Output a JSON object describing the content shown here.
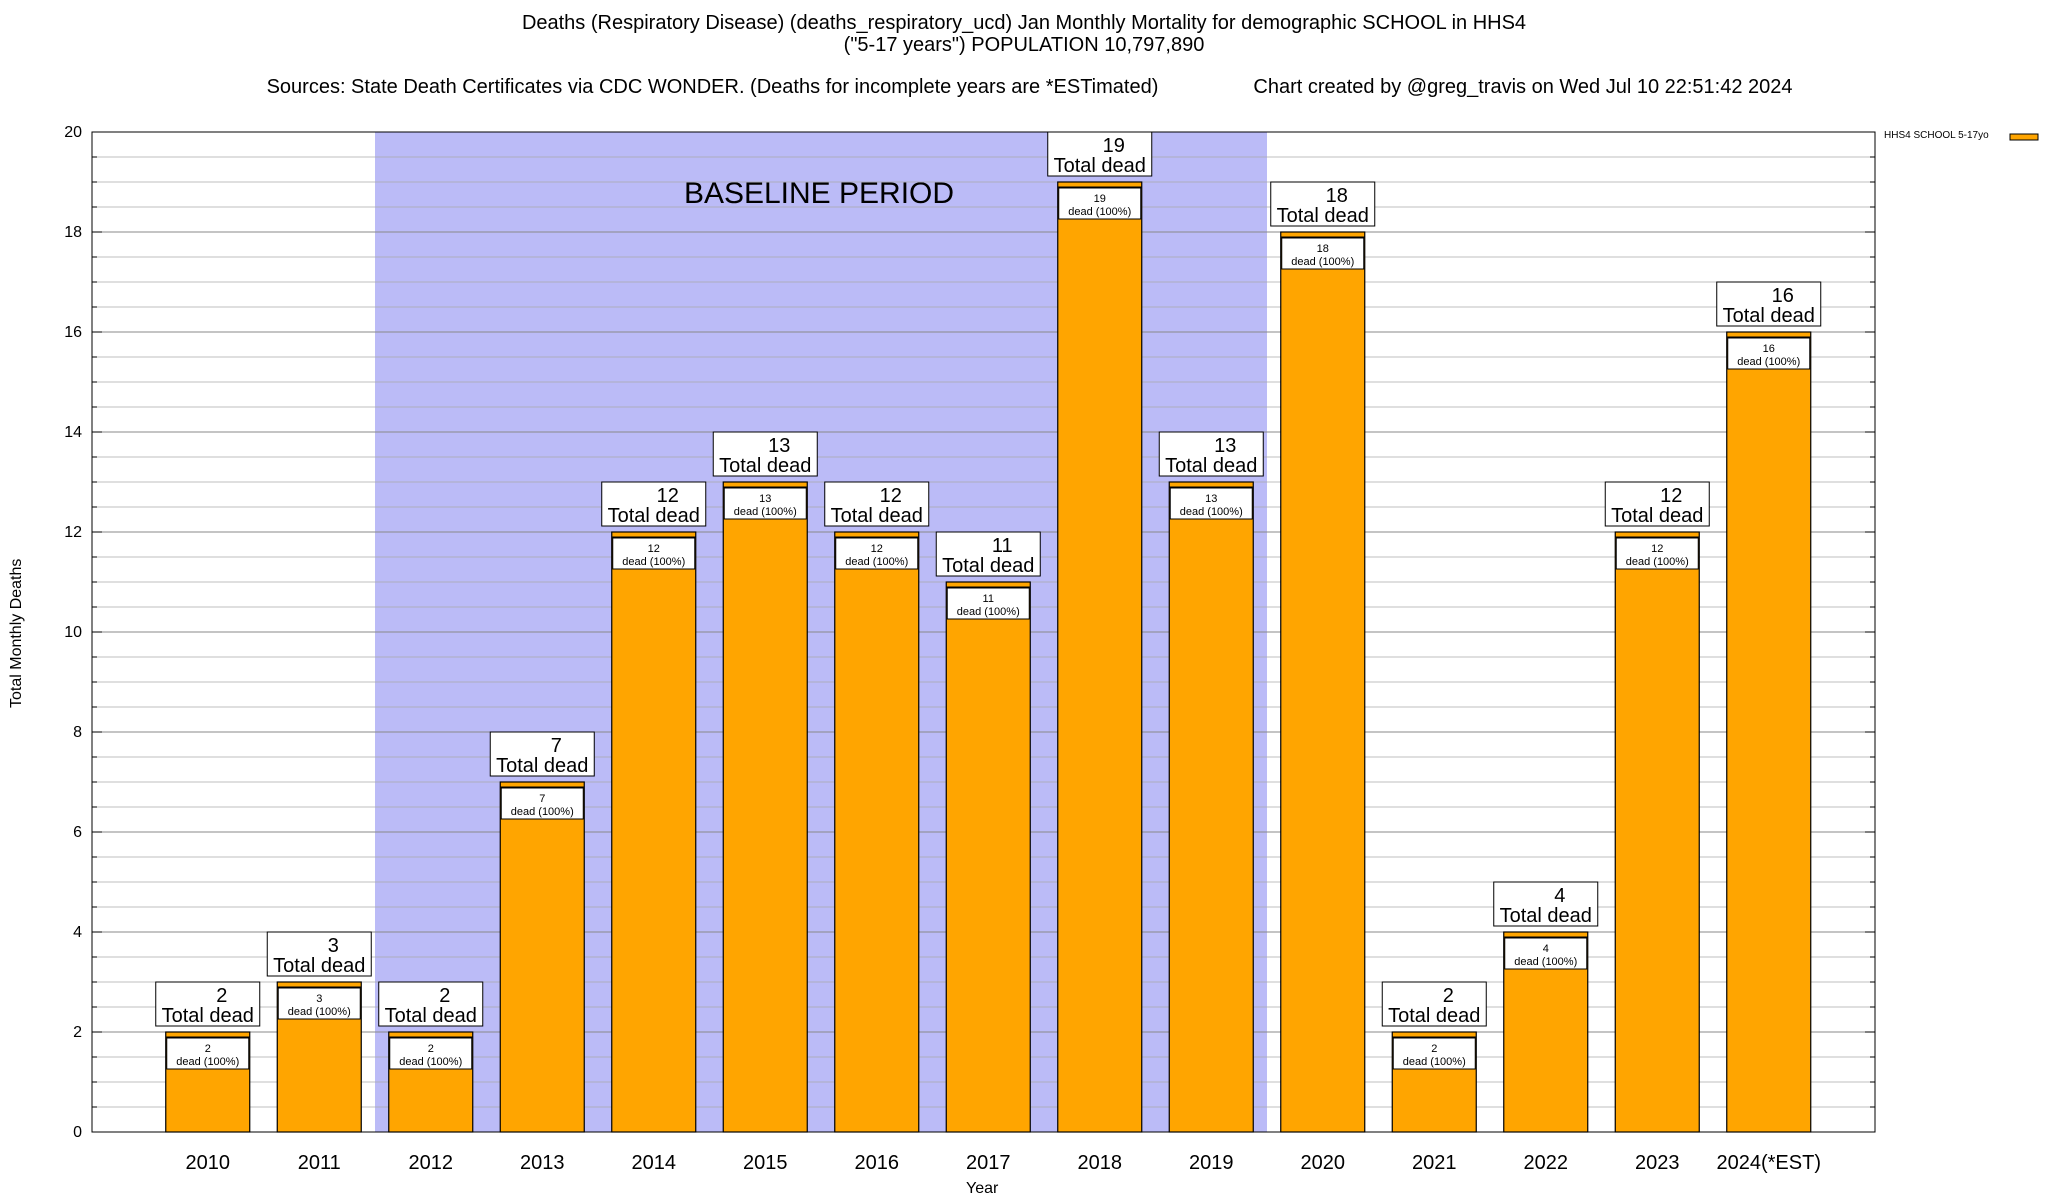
{
  "header": {
    "title_line1": "Deaths (Respiratory Disease) (deaths_respiratory_ucd) Jan Monthly Mortality for demographic SCHOOL in HHS4",
    "title_line2": "(\"5-17 years\") POPULATION 10,797,890",
    "sources": "Sources: State Death Certificates via CDC WONDER. (Deaths for incomplete years are *ESTimated)",
    "credit": "Chart created by @greg_travis on Wed Jul 10 22:51:42 2024"
  },
  "colors": {
    "bar_fill": "#FFA500",
    "baseline_shade": "#BBBBF7",
    "grid": "#AAAAAA"
  },
  "chart_data": {
    "type": "bar",
    "xlabel": "Year",
    "ylabel": "Total Monthly Deaths",
    "ylim": [
      0,
      20
    ],
    "yticks": [
      0,
      2,
      4,
      6,
      8,
      10,
      12,
      14,
      16,
      18,
      20
    ],
    "grid": true,
    "legend_position": "top-right",
    "categories": [
      "2010",
      "2011",
      "2012",
      "2013",
      "2014",
      "2015",
      "2016",
      "2017",
      "2018",
      "2019",
      "2020",
      "2021",
      "2022",
      "2023",
      "2024(*EST)"
    ],
    "series": [
      {
        "name": "HHS4 SCHOOL 5-17yo",
        "values": [
          2,
          3,
          2,
          7,
          12,
          13,
          12,
          11,
          19,
          13,
          18,
          2,
          4,
          12,
          16
        ]
      }
    ],
    "total_label_suffix": "Total dead",
    "segment_label_suffix": "dead (100%)",
    "baseline_period": {
      "label": "BASELINE PERIOD",
      "from": "2012",
      "to": "2019"
    }
  }
}
